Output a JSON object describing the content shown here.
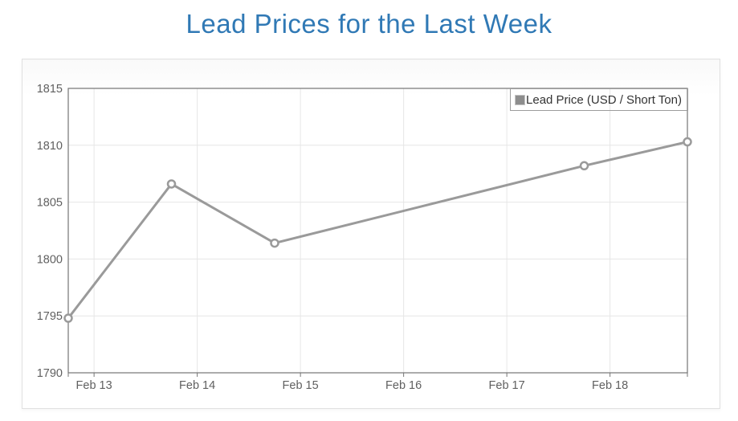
{
  "title": {
    "text": "Lead Prices for the Last Week",
    "color": "#3079b5"
  },
  "legend": {
    "label": "Lead Price (USD / Short Ton)",
    "swatch_color": "#8d8d8d"
  },
  "chart_data": {
    "type": "line",
    "title": "Lead Prices for the Last Week",
    "xlabel": "",
    "ylabel": "",
    "xlim": [
      0,
      6
    ],
    "ylim": [
      1790,
      1815
    ],
    "grid": true,
    "legend_position": "top-right",
    "x_ticks": {
      "positions": [
        0.25,
        1.25,
        2.25,
        3.25,
        4.25,
        5.25
      ],
      "labels": [
        "Feb 13",
        "Feb 14",
        "Feb 15",
        "Feb 16",
        "Feb 17",
        "Feb 18"
      ]
    },
    "y_ticks": [
      1790,
      1795,
      1800,
      1805,
      1810,
      1815
    ],
    "series": [
      {
        "name": "Lead Price (USD / Short Ton)",
        "color": "#9a9a9a",
        "marker_fill": "#ffffff",
        "x": [
          0,
          1,
          2,
          5,
          6
        ],
        "values": [
          1794.8,
          1806.6,
          1801.4,
          1808.2,
          1810.3
        ]
      }
    ],
    "colors": {
      "grid": "#e6e6e6",
      "plot_border": "#747474",
      "tick": "#747474",
      "tick_label": "#606060"
    }
  }
}
